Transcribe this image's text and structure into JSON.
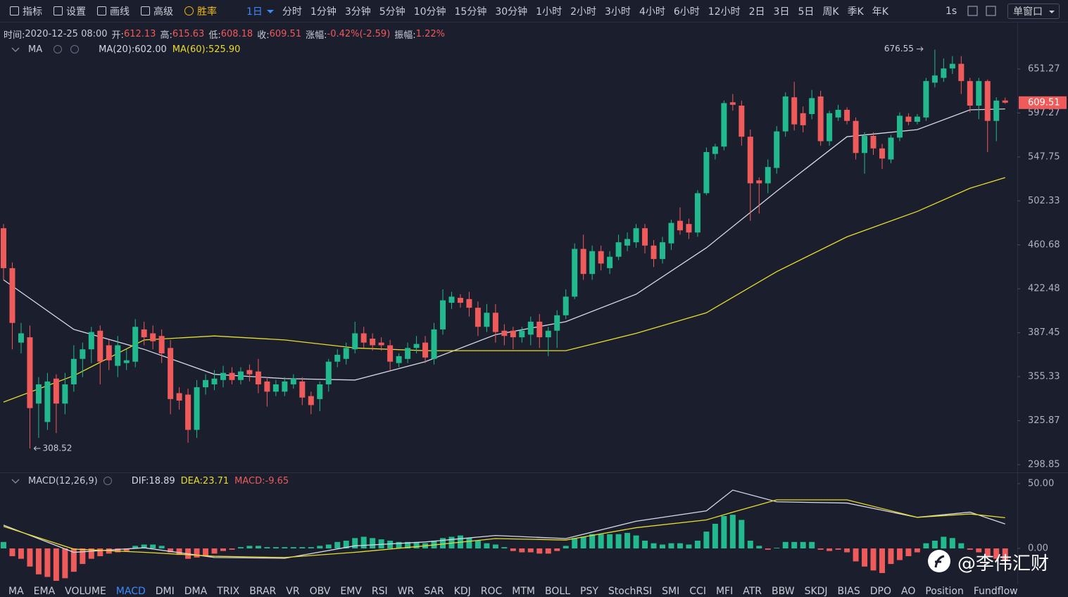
{
  "toolbar": {
    "tools": [
      "指标",
      "设置",
      "画线",
      "高级",
      "胜率"
    ],
    "intervals": [
      "1日",
      "分时",
      "1分钟",
      "3分钟",
      "5分钟",
      "10分钟",
      "15分钟",
      "30分钟",
      "1小时",
      "2小时",
      "3小时",
      "4小时",
      "6小时",
      "12小时",
      "2日",
      "3日",
      "5日",
      "周K",
      "季K",
      "年K"
    ],
    "replay": "1s",
    "window": "单窗口"
  },
  "info": {
    "time_label": "时间:",
    "time": "2020-12-25 08:00",
    "open_label": "开:",
    "high_label": "高:",
    "low_label": "低:",
    "close_label": "收:",
    "change_label": "涨幅:",
    "change": "-0.42%(-2.59)",
    "amplitude_label": "振幅:",
    "amplitude": "1.22%"
  },
  "chart_data": [
    {
      "type": "candlestick",
      "indicator": "MA",
      "log_scale": true,
      "colors": {
        "up": "#22b98e",
        "down": "#ef5a5a"
      },
      "ylim": [
        294.7,
        707.8
      ],
      "yticks": [
        651.27,
        597.27,
        547.75,
        502.33,
        460.68,
        422.48,
        387.45,
        355.33,
        325.87,
        298.85
      ],
      "open": [
        476,
        440,
        380,
        384,
        337,
        325,
        354,
        337,
        350,
        368,
        375,
        389,
        378,
        363,
        365,
        366,
        390,
        387,
        385,
        376,
        344,
        343,
        320,
        348,
        350,
        353,
        358,
        353,
        360,
        359,
        352,
        345,
        345,
        350,
        352,
        342,
        340,
        350,
        366,
        368,
        375,
        387,
        383,
        380,
        378,
        365,
        368,
        376,
        380,
        368,
        390,
        411,
        415,
        414,
        407,
        392,
        403,
        389,
        389,
        384,
        386,
        396,
        384,
        389,
        401,
        416,
        457,
        435,
        455,
        440,
        450,
        460,
        463,
        476,
        460,
        448,
        462,
        483,
        480,
        472,
        510,
        551,
        559,
        610,
        606,
        570,
        523,
        520,
        536,
        576,
        616,
        597,
        596,
        617,
        565,
        592,
        601,
        588,
        552,
        571,
        557,
        545,
        569,
        593,
        587,
        592,
        634,
        640,
        652,
        658,
        636,
        606,
        636,
        588,
        612.13
      ],
      "high": [
        480,
        445,
        395,
        393,
        355,
        358,
        357,
        358,
        378,
        380,
        392,
        393,
        382,
        385,
        375,
        398,
        396,
        393,
        390,
        382,
        348,
        347,
        353,
        357,
        360,
        363,
        362,
        362,
        364,
        368,
        355,
        353,
        355,
        357,
        355,
        345,
        352,
        368,
        375,
        380,
        396,
        392,
        387,
        384,
        382,
        372,
        380,
        385,
        385,
        395,
        422,
        420,
        418,
        420,
        412,
        410,
        410,
        394,
        392,
        392,
        400,
        402,
        392,
        405,
        422,
        462,
        470,
        460,
        460,
        455,
        470,
        472,
        480,
        480,
        465,
        468,
        484,
        496,
        485,
        513,
        558,
        562,
        612,
        620,
        612,
        578,
        526,
        545,
        582,
        622,
        635,
        605,
        625,
        624,
        600,
        607,
        604,
        592,
        575,
        575,
        562,
        572,
        598,
        597,
        596,
        640,
        676.55,
        665,
        668,
        668,
        640,
        640,
        638,
        616,
        615.63
      ],
      "low": [
        430,
        375,
        372,
        308.52,
        315,
        320,
        318,
        330,
        345,
        355,
        365,
        350,
        360,
        355,
        360,
        362,
        378,
        375,
        365,
        330,
        333,
        312,
        315,
        343,
        346,
        348,
        350,
        350,
        352,
        344,
        335,
        342,
        342,
        347,
        336,
        330,
        332,
        345,
        362,
        364,
        372,
        376,
        374,
        374,
        360,
        362,
        365,
        372,
        365,
        364,
        386,
        406,
        407,
        400,
        385,
        388,
        380,
        378,
        375,
        380,
        378,
        376,
        370,
        376,
        398,
        414,
        430,
        430,
        438,
        435,
        447,
        455,
        458,
        453,
        441,
        444,
        456,
        470,
        466,
        468,
        508,
        545,
        555,
        600,
        560,
        483,
        490,
        510,
        530,
        570,
        577,
        575,
        590,
        560,
        560,
        588,
        584,
        545,
        530,
        550,
        535,
        541,
        565,
        583,
        584,
        588,
        628,
        635,
        645,
        620,
        598,
        590,
        553,
        565,
        608.18
      ],
      "close": [
        440,
        395,
        387,
        334,
        350,
        352,
        337,
        350,
        368,
        375,
        388,
        366,
        367,
        378,
        367,
        392,
        384,
        381,
        372,
        340,
        339,
        320,
        348,
        353,
        354,
        358,
        353,
        359,
        357,
        350,
        345,
        350,
        352,
        354,
        341,
        336,
        350,
        366,
        371,
        376,
        387,
        380,
        378,
        378,
        366,
        370,
        376,
        379,
        369,
        390,
        413,
        416,
        411,
        407,
        392,
        403,
        388,
        385,
        384,
        389,
        396,
        384,
        389,
        401,
        416,
        457,
        435,
        455,
        444,
        450,
        463,
        466,
        476,
        460,
        448,
        463,
        481,
        474,
        472,
        510,
        553,
        559,
        609,
        607,
        570,
        520,
        520,
        537,
        576,
        617,
        584,
        583,
        615,
        565,
        597,
        601,
        588,
        552,
        571,
        557,
        546,
        569,
        594,
        587,
        593,
        636,
        643,
        652,
        658,
        636,
        606,
        636,
        588,
        612,
        609.51
      ],
      "series": [
        {
          "name": "MA(20):602.00",
          "color": "#d6d8e6",
          "x": [
            0,
            8,
            16,
            24,
            32,
            40,
            48,
            56,
            64,
            72,
            80,
            88,
            96,
            104,
            110,
            114
          ],
          "values": [
            430,
            390,
            375,
            357,
            354,
            353,
            366,
            386,
            396,
            418,
            458,
            512,
            570,
            578,
            601,
            602
          ]
        },
        {
          "name": "MA(60):525.90",
          "color": "#e8dc2c",
          "x": [
            0,
            8,
            16,
            24,
            32,
            40,
            48,
            56,
            64,
            72,
            80,
            88,
            96,
            104,
            110,
            114
          ],
          "values": [
            338,
            356,
            382,
            385,
            382,
            376,
            374,
            374,
            374,
            387,
            403,
            437,
            468,
            492,
            515,
            525.9
          ]
        }
      ]
    },
    {
      "type": "bar",
      "indicator": "MACD(12,26,9)",
      "colors": {
        "up": "#22b98e",
        "down": "#ef5a5a"
      },
      "ylim": [
        -27.7,
        56.5
      ],
      "yticks": [
        {
          "value": 50,
          "label": "50.00"
        },
        {
          "value": 0,
          "label": "0.00"
        }
      ],
      "values": [
        5,
        -6,
        -8,
        -14,
        -20,
        -22,
        -25,
        -23,
        -18,
        -12,
        -8,
        -6,
        -4,
        -3,
        -2,
        2,
        3,
        3,
        2,
        -3,
        -5,
        -8,
        -7,
        -6,
        -4,
        -2,
        -1,
        1,
        2,
        2,
        1,
        1,
        1,
        1,
        1,
        1,
        2,
        3,
        5,
        6,
        8,
        9,
        8,
        7,
        6,
        5,
        5,
        5,
        4,
        6,
        8,
        9,
        10,
        8,
        6,
        4,
        3,
        1,
        -2,
        -3,
        -3,
        -4,
        -4,
        -2,
        2,
        8,
        9,
        11,
        11,
        11,
        11,
        12,
        10,
        6,
        4,
        3,
        4,
        4,
        3,
        6,
        13,
        19,
        25,
        26,
        22,
        6,
        2,
        -1,
        0.5,
        5,
        5,
        5,
        5,
        -1,
        -2,
        -1,
        -3,
        -10,
        -14,
        -17,
        -19,
        -12,
        -9,
        -6,
        -3,
        4,
        6,
        9,
        8,
        4,
        -1,
        -3,
        -6,
        -8,
        -9.65
      ],
      "series": [
        {
          "name": "DIF:18.89",
          "color": "#d6d8e6",
          "x": [
            0,
            8,
            16,
            24,
            32,
            40,
            48,
            56,
            64,
            72,
            80,
            83,
            88,
            96,
            104,
            110,
            114
          ],
          "values": [
            18,
            -3,
            0.5,
            -7,
            -7.6,
            2,
            5,
            10,
            7.6,
            21,
            29,
            45,
            36,
            35,
            24,
            28,
            18.89
          ]
        },
        {
          "name": "DEA:23.71",
          "color": "#e8dc2c",
          "x": [
            0,
            8,
            16,
            24,
            32,
            40,
            48,
            56,
            64,
            72,
            80,
            83,
            88,
            96,
            104,
            110,
            114
          ],
          "values": [
            17,
            -0.5,
            -3,
            -6,
            -7,
            -3,
            2,
            7.6,
            6.5,
            16,
            22,
            28,
            37.5,
            37.5,
            24,
            26.6,
            23.71
          ]
        }
      ],
      "histogram_label": "MACD:-9.65"
    }
  ],
  "indicator_tabs": [
    "MA",
    "EMA",
    "VOLUME",
    "MACD",
    "DMI",
    "DMA",
    "TRIX",
    "BRAR",
    "VR",
    "OBV",
    "EMV",
    "RSI",
    "WR",
    "SAR",
    "KDJ",
    "ROC",
    "MTM",
    "BOLL",
    "PSY",
    "StochRSI",
    "SMI",
    "CCI",
    "MFI",
    "ATR",
    "BBW",
    "SKDJ",
    "BIAS",
    "DPO",
    "AO",
    "Position",
    "Fundflow"
  ],
  "watermark": "@李伟汇财"
}
